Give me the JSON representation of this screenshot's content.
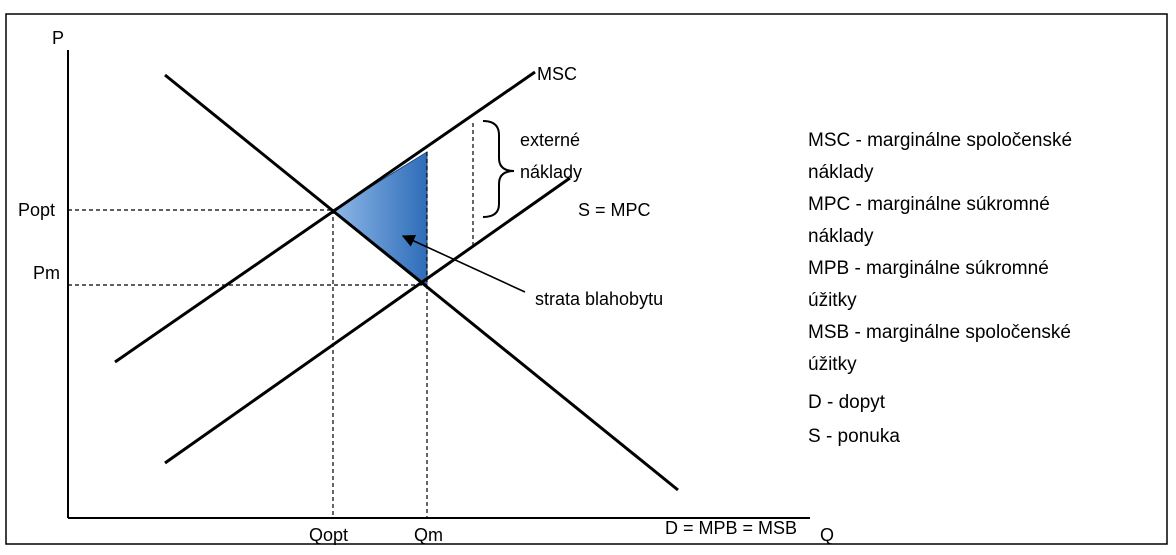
{
  "axes": {
    "y_label": "P",
    "x_label": "Q"
  },
  "price_ticks": {
    "popt": "Popt",
    "pm": "Pm"
  },
  "quantity_ticks": {
    "qopt": "Qopt",
    "qm": "Qm"
  },
  "curves": {
    "msc": "MSC",
    "mpc": "S = MPC",
    "demand": "D = MPB = MSB"
  },
  "annotations": {
    "external_costs_line1": "externé",
    "external_costs_line2": "náklady",
    "welfare_loss": "strata blahobytu"
  },
  "legend": [
    "MSC - marginálne spoločenské",
    "náklady",
    "MPC - marginálne súkromné",
    "náklady",
    "MPB - marginálne súkromné",
    "úžitky",
    "MSB - marginálne spoločenské",
    "úžitky",
    "D - dopyt",
    "S - ponuka"
  ],
  "colors": {
    "frame": "#000000",
    "welfare_fill_light": "#8fb8e8",
    "welfare_fill_dark": "#2e6db8"
  }
}
